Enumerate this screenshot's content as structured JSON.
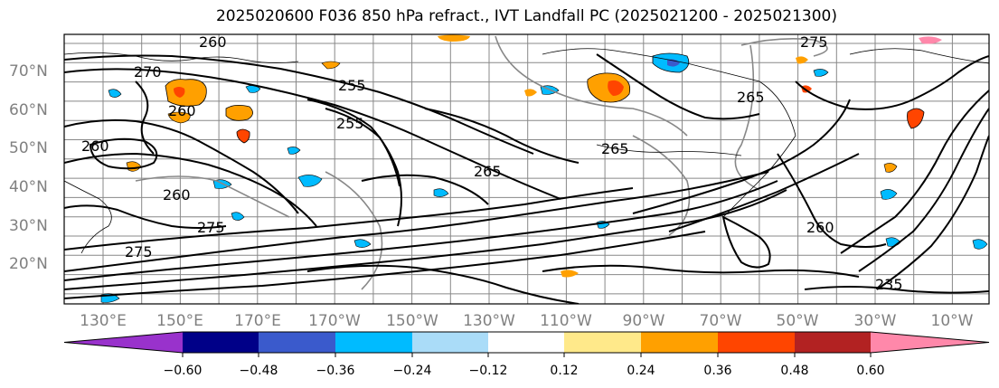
{
  "title": "2025020600 F036 850 hPa refract., IVT Landfall PC (2025021200 - 2025021300)",
  "map": {
    "lat_labels": [
      "70°N",
      "60°N",
      "50°N",
      "40°N",
      "30°N",
      "20°N"
    ],
    "lon_labels": [
      "130°E",
      "150°E",
      "170°E",
      "170°W",
      "150°W",
      "130°W",
      "110°W",
      "90°W",
      "70°W",
      "50°W",
      "30°W",
      "10°W"
    ],
    "contour_labels": [
      "260",
      "270",
      "260",
      "260",
      "260",
      "275",
      "275",
      "265",
      "265",
      "275",
      "255",
      "260",
      "265",
      "255",
      "235"
    ],
    "gridline_color": "#888888",
    "contour_color": "#000000"
  },
  "colorbar": {
    "bounds": [
      "−0.60",
      "−0.48",
      "−0.36",
      "−0.24",
      "−0.12",
      "0.12",
      "0.24",
      "0.36",
      "0.48",
      "0.60"
    ],
    "under_color": "#9932cc",
    "over_color": "#ff88aa",
    "colors": [
      "#000088",
      "#3a5acc",
      "#00bbff",
      "#aadcf8",
      "#ffffff",
      "#ffe98a",
      "#ffa000",
      "#ff4500",
      "#b22222"
    ]
  }
}
